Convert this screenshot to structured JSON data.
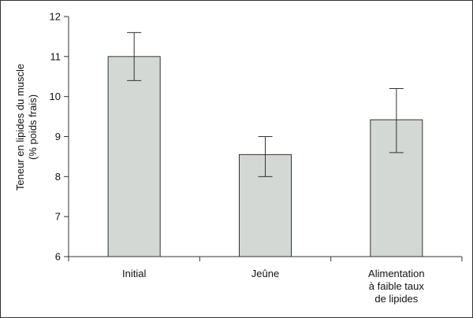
{
  "chart_data": {
    "type": "bar",
    "categories": [
      [
        "Initial"
      ],
      [
        "Jeûne"
      ],
      [
        "Alimentation",
        "à faible taux",
        "de lipides"
      ]
    ],
    "values": [
      11.0,
      8.55,
      9.42
    ],
    "error_low": [
      10.4,
      8.0,
      8.6
    ],
    "error_high": [
      11.6,
      9.0,
      10.2
    ],
    "ylabel": [
      "Teneur en lipides du muscle",
      "(% poids frais)"
    ],
    "xlabel": "",
    "title": "",
    "ylim": [
      6,
      12
    ],
    "yticks": [
      6,
      7,
      8,
      9,
      10,
      11,
      12
    ],
    "bar_color": "#d3d8d4",
    "bar_edge_color": "#333333",
    "grid": false,
    "legend": "none"
  }
}
